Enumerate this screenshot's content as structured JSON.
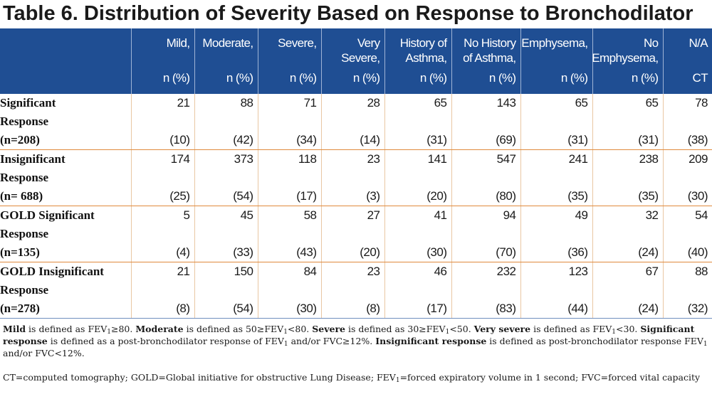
{
  "title": "Table 6. Distribution of Severity Based on Response to Bronchodilator",
  "columns": [
    {
      "l1": "Mild,",
      "l2": "",
      "l3": "n (%)"
    },
    {
      "l1": "Moderate,",
      "l2": "",
      "l3": "n (%)"
    },
    {
      "l1": "Severe,",
      "l2": "",
      "l3": "n (%)"
    },
    {
      "l1": "Very",
      "l2": "Severe,",
      "l3": "n (%)"
    },
    {
      "l1": "History of",
      "l2": "Asthma,",
      "l3": "n (%)"
    },
    {
      "l1": "No History",
      "l2": "of Asthma,",
      "l3": "n (%)"
    },
    {
      "l1": "Emphysema,",
      "l2": "",
      "l3": "n (%)"
    },
    {
      "l1": "No",
      "l2": "Emphysema,",
      "l3": "n (%)"
    },
    {
      "l1": "N/A",
      "l2": "",
      "l3": "CT"
    }
  ],
  "rows": [
    {
      "label": [
        "Significant",
        "Response",
        "(n=208)"
      ],
      "n": [
        "21",
        "88",
        "71",
        "28",
        "65",
        "143",
        "65",
        "65",
        "78"
      ],
      "pct": [
        "(10)",
        "(42)",
        "(34)",
        "(14)",
        "(31)",
        "(69)",
        "(31)",
        "(31)",
        "(38)"
      ]
    },
    {
      "label": [
        "Insignificant",
        "Response",
        "(n= 688)"
      ],
      "n": [
        "174",
        "373",
        "118",
        "23",
        "141",
        "547",
        "241",
        "238",
        "209"
      ],
      "pct": [
        "(25)",
        "(54)",
        "(17)",
        "(3)",
        "(20)",
        "(80)",
        "(35)",
        "(35)",
        "(30)"
      ]
    },
    {
      "label": [
        "GOLD Significant",
        "Response",
        "(n=135)"
      ],
      "n": [
        "5",
        "45",
        "58",
        "27",
        "41",
        "94",
        "49",
        "32",
        "54"
      ],
      "pct": [
        "(4)",
        "(33)",
        "(43)",
        "(20)",
        "(30)",
        "(70)",
        "(36)",
        "(24)",
        "(40)"
      ]
    },
    {
      "label": [
        "GOLD Insignificant",
        "Response",
        "(n=278)"
      ],
      "n": [
        "21",
        "150",
        "84",
        "23",
        "46",
        "232",
        "123",
        "67",
        "88"
      ],
      "pct": [
        "(8)",
        "(54)",
        "(30)",
        "(8)",
        "(17)",
        "(83)",
        "(44)",
        "(24)",
        "(32)"
      ]
    }
  ],
  "notes": {
    "mild_b": "Mild",
    "mild_t1": " is defined as FEV",
    "mild_t2": "≥80. ",
    "moderate_b": "Moderate",
    "moderate_t1": " is defined as 50≥FEV",
    "moderate_t2": "<80. ",
    "severe_b": "Severe",
    "severe_t1": " is defined as 30≥FEV",
    "severe_t2": "<50. ",
    "vsevere_b": "Very severe",
    "vsevere_t1": " is defined as FEV",
    "vsevere_t2": "<30.",
    "sig_b": "Significant response",
    "sig_t1": " is defined as a post-bronchodilator response of FEV",
    "sig_t2": " and/or FVC≥12%. ",
    "insig_b": "Insignificant response",
    "insig_t1": " is defined as post-bronchodilator response FEV",
    "insig_t2": " and/or FVC<12%.",
    "abbr1": "CT=computed tomography; GOLD=Global initiative for obstructive Lung Disease; FEV",
    "abbr2": "=forced expiratory volume in 1 second; FVC=forced vital capacity",
    "sub": "1"
  }
}
